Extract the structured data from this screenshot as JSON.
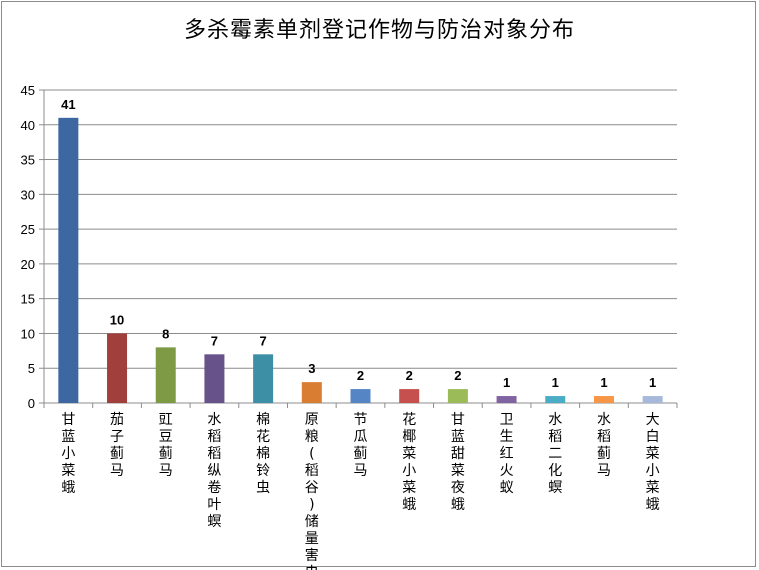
{
  "chart_data": {
    "type": "bar",
    "title": "多杀霉素单剂登记作物与防治对象分布",
    "xlabel": "",
    "ylabel": "",
    "ylim": [
      0,
      45
    ],
    "ytick_step": 5,
    "grid": true,
    "legend": "none",
    "categories": [
      "甘蓝小菜蛾",
      "茄子蓟马",
      "豇豆蓟马",
      "水稻稻纵卷叶螟",
      "棉花棉铃虫",
      "原粮(稻谷)储量害虫",
      "节瓜蓟马",
      "花椰菜小菜蛾",
      "甘蓝甜菜夜蛾",
      "卫生红火蚁",
      "水稻二化螟",
      "水稻蓟马",
      "大白菜小菜蛾"
    ],
    "values": [
      41,
      10,
      8,
      7,
      7,
      3,
      2,
      2,
      2,
      1,
      1,
      1,
      1
    ],
    "colors": [
      "#3d67a1",
      "#a13f3c",
      "#7f9a45",
      "#68528a",
      "#3d8fa6",
      "#d97d33",
      "#5585c5",
      "#c6504d",
      "#9bbb59",
      "#8064a2",
      "#4bacc6",
      "#f79646",
      "#a7b9da"
    ]
  }
}
